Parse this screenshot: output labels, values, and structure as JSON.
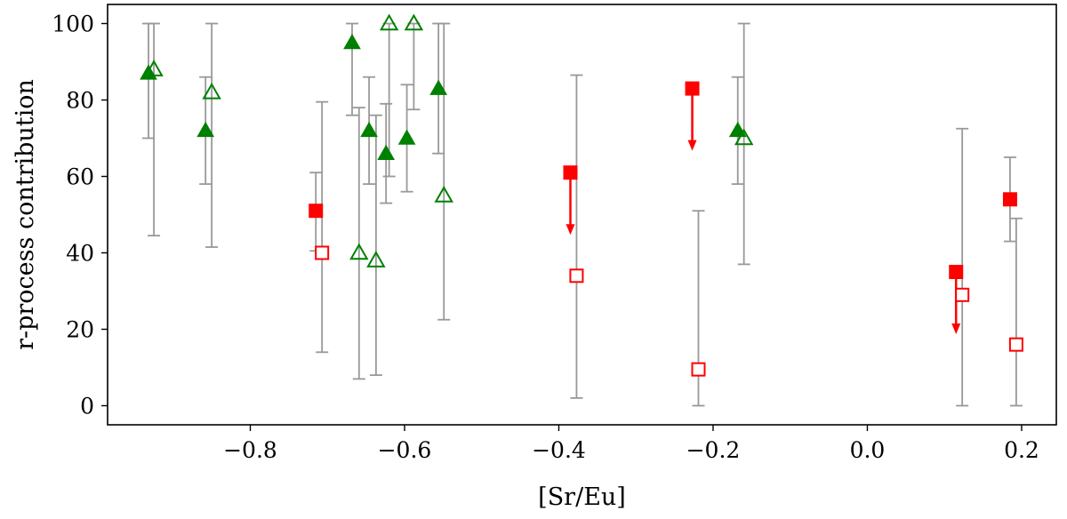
{
  "chart_data": {
    "type": "scatter",
    "xlabel": "[Sr/Eu]",
    "ylabel": "r-process contribution",
    "xlim": [
      -0.985,
      0.245
    ],
    "ylim": [
      -5,
      105
    ],
    "xticks": [
      -0.8,
      -0.6,
      -0.4,
      -0.2,
      0.0,
      0.2
    ],
    "xtick_labels": [
      "−0.8",
      "−0.6",
      "−0.4",
      "−0.2",
      "0.0",
      "0.2"
    ],
    "yticks": [
      0,
      20,
      40,
      60,
      80,
      100
    ],
    "ytick_labels": [
      "0",
      "20",
      "40",
      "60",
      "80",
      "100"
    ],
    "grid": false,
    "legend": "none",
    "colors": {
      "green": "#008000",
      "red": "#ff0000",
      "errorbar": "#999999"
    },
    "series": [
      {
        "marker": "triangle-filled",
        "color": "#008000",
        "points": [
          {
            "x": -0.932,
            "y": 87,
            "ylo": 70,
            "yhi": 100
          },
          {
            "x": -0.858,
            "y": 72,
            "ylo": 58,
            "yhi": 86
          },
          {
            "x": -0.668,
            "y": 95,
            "ylo": 76,
            "yhi": 100
          },
          {
            "x": -0.646,
            "y": 72,
            "ylo": 58,
            "yhi": 86
          },
          {
            "x": -0.624,
            "y": 66,
            "ylo": 53,
            "yhi": 79
          },
          {
            "x": -0.597,
            "y": 70,
            "ylo": 56,
            "yhi": 84
          },
          {
            "x": -0.556,
            "y": 83,
            "ylo": 66,
            "yhi": 100
          },
          {
            "x": -0.168,
            "y": 72,
            "ylo": 58,
            "yhi": 86
          }
        ]
      },
      {
        "marker": "triangle-open",
        "color": "#008000",
        "points": [
          {
            "x": -0.925,
            "y": 88,
            "ylo": 44.5,
            "yhi": 100
          },
          {
            "x": -0.85,
            "y": 82,
            "ylo": 41.5,
            "yhi": 100
          },
          {
            "x": -0.659,
            "y": 40,
            "ylo": 7,
            "yhi": 78
          },
          {
            "x": -0.637,
            "y": 38,
            "ylo": 8,
            "yhi": 76
          },
          {
            "x": -0.62,
            "y": 100,
            "ylo": 60,
            "yhi": 100
          },
          {
            "x": -0.588,
            "y": 100,
            "ylo": 77.5,
            "yhi": 100
          },
          {
            "x": -0.549,
            "y": 55,
            "ylo": 22.5,
            "yhi": 100
          },
          {
            "x": -0.16,
            "y": 70,
            "ylo": 37,
            "yhi": 100
          }
        ]
      },
      {
        "marker": "square-filled",
        "color": "#ff0000",
        "points": [
          {
            "x": -0.715,
            "y": 51,
            "ylo": 40.5,
            "yhi": 61
          },
          {
            "x": -0.385,
            "y": 61,
            "upper_limit": true
          },
          {
            "x": -0.227,
            "y": 83,
            "upper_limit": true
          },
          {
            "x": 0.115,
            "y": 35,
            "upper_limit": true
          },
          {
            "x": 0.185,
            "y": 54,
            "ylo": 43,
            "yhi": 65
          }
        ]
      },
      {
        "marker": "square-open",
        "color": "#ff0000",
        "points": [
          {
            "x": -0.707,
            "y": 40,
            "ylo": 14,
            "yhi": 79.5
          },
          {
            "x": -0.377,
            "y": 34,
            "ylo": 2,
            "yhi": 86.5
          },
          {
            "x": -0.219,
            "y": 9.5,
            "ylo": 0,
            "yhi": 51
          },
          {
            "x": 0.123,
            "y": 29,
            "ylo": 0,
            "yhi": 72.5
          },
          {
            "x": 0.193,
            "y": 16,
            "ylo": 0,
            "yhi": 49
          }
        ]
      }
    ]
  }
}
